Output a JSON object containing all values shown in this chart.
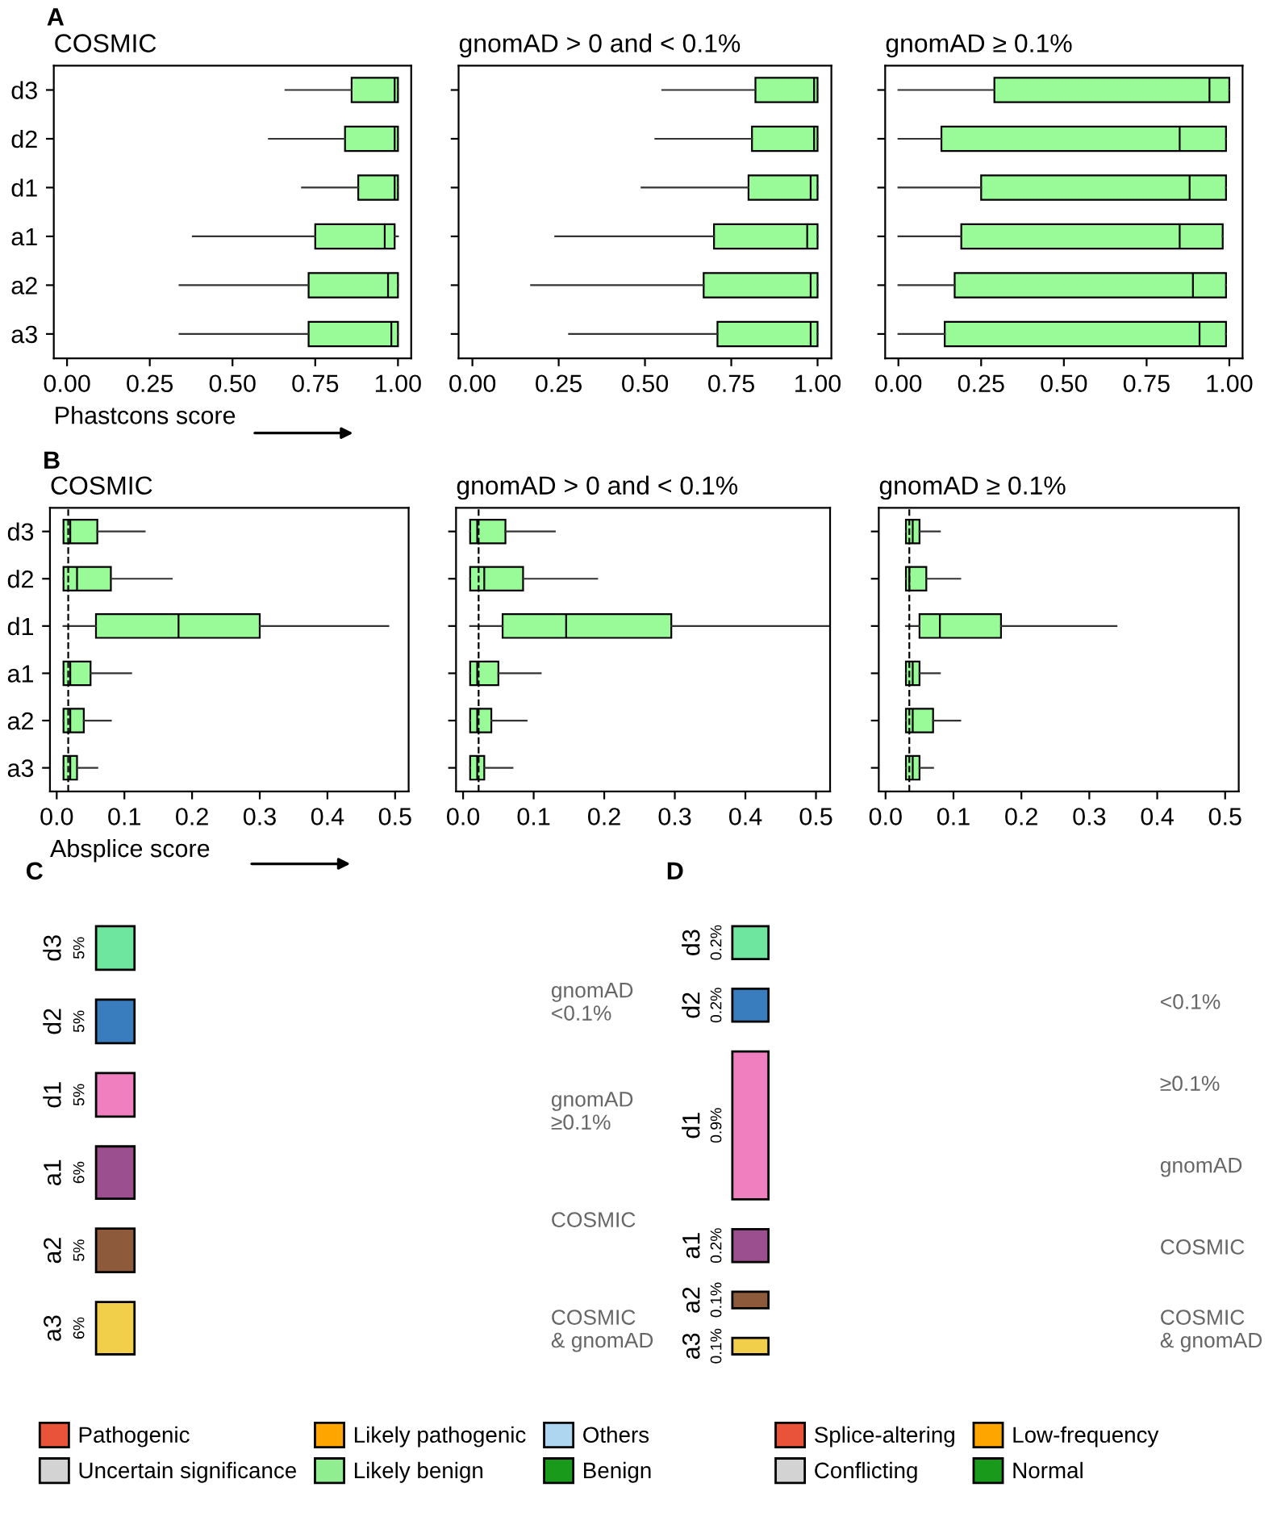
{
  "chart_data": [
    {
      "type": "box",
      "orientation": "horizontal",
      "title": "COSMIC",
      "xlabel": "Phastcons score",
      "annotations": [
        "A"
      ],
      "categories": [
        "d3",
        "d2",
        "d1",
        "a1",
        "a2",
        "a3"
      ],
      "xlim": [
        -0.04,
        1.04
      ],
      "xticks": [
        {
          "value": 0,
          "label": "0.00"
        },
        {
          "value": 0.25,
          "label": "0.25"
        },
        {
          "value": 0.5,
          "label": "0.50"
        },
        {
          "value": 0.75,
          "label": "0.75"
        },
        {
          "value": 1,
          "label": "1.00"
        }
      ],
      "series": [
        {
          "color": "#98fb98",
          "boxes": [
            {
              "low": 0.66,
              "q1": 0.86,
              "median": 0.99,
              "q3": 1.0,
              "high": 1.0
            },
            {
              "low": 0.61,
              "q1": 0.84,
              "median": 0.99,
              "q3": 1.0,
              "high": 1.0
            },
            {
              "low": 0.71,
              "q1": 0.88,
              "median": 0.99,
              "q3": 1.0,
              "high": 1.0
            },
            {
              "low": 0.38,
              "q1": 0.75,
              "median": 0.96,
              "q3": 0.99,
              "high": 1.0
            },
            {
              "low": 0.34,
              "q1": 0.73,
              "median": 0.97,
              "q3": 1.0,
              "high": 1.0
            },
            {
              "low": 0.34,
              "q1": 0.73,
              "median": 0.98,
              "q3": 1.0,
              "high": 1.0
            }
          ]
        }
      ]
    },
    {
      "type": "box",
      "orientation": "horizontal",
      "title": "gnomAD > 0 and < 0.1%",
      "tick_labels": "x",
      "xlim": [
        -0.04,
        1.04
      ],
      "xticks": [
        {
          "value": 0,
          "label": "0.00"
        },
        {
          "value": 0.25,
          "label": "0.25"
        },
        {
          "value": 0.5,
          "label": "0.50"
        },
        {
          "value": 0.75,
          "label": "0.75"
        },
        {
          "value": 1,
          "label": "1.00"
        }
      ],
      "series": [
        {
          "color": "#98fb98",
          "boxes": [
            {
              "low": 0.55,
              "q1": 0.82,
              "median": 0.99,
              "q3": 1.0,
              "high": 1.0
            },
            {
              "low": 0.53,
              "q1": 0.81,
              "median": 0.99,
              "q3": 1.0,
              "high": 1.0
            },
            {
              "low": 0.49,
              "q1": 0.8,
              "median": 0.98,
              "q3": 1.0,
              "high": 1.0
            },
            {
              "low": 0.24,
              "q1": 0.7,
              "median": 0.97,
              "q3": 1.0,
              "high": 1.0
            },
            {
              "low": 0.17,
              "q1": 0.67,
              "median": 0.98,
              "q3": 1.0,
              "high": 1.0
            },
            {
              "low": 0.28,
              "q1": 0.71,
              "median": 0.98,
              "q3": 1.0,
              "high": 1.0
            }
          ]
        }
      ]
    },
    {
      "type": "box",
      "orientation": "horizontal",
      "title": "gnomAD ≥ 0.1%",
      "tick_labels": "x",
      "xlim": [
        -0.04,
        1.04
      ],
      "xticks": [
        {
          "value": 0,
          "label": "0.00"
        },
        {
          "value": 0.25,
          "label": "0.25"
        },
        {
          "value": 0.5,
          "label": "0.50"
        },
        {
          "value": 0.75,
          "label": "0.75"
        },
        {
          "value": 1,
          "label": "1.00"
        }
      ],
      "series": [
        {
          "color": "#98fb98",
          "boxes": [
            {
              "low": 0.0,
              "q1": 0.29,
              "median": 0.94,
              "q3": 1.0,
              "high": 1.0
            },
            {
              "low": 0.0,
              "q1": 0.13,
              "median": 0.85,
              "q3": 0.99,
              "high": 0.99
            },
            {
              "low": 0.0,
              "q1": 0.25,
              "median": 0.88,
              "q3": 0.99,
              "high": 0.99
            },
            {
              "low": 0.0,
              "q1": 0.19,
              "median": 0.85,
              "q3": 0.98,
              "high": 0.98
            },
            {
              "low": 0.0,
              "q1": 0.17,
              "median": 0.89,
              "q3": 0.99,
              "high": 0.99
            },
            {
              "low": 0.0,
              "q1": 0.14,
              "median": 0.91,
              "q3": 0.99,
              "high": 0.99
            }
          ]
        }
      ]
    },
    {
      "type": "box",
      "orientation": "horizontal",
      "title": "COSMIC",
      "xlabel": "Absplice score",
      "annotations": [
        "B"
      ],
      "categories": [
        "d3",
        "d2",
        "d1",
        "a1",
        "a2",
        "a3"
      ],
      "xlim": [
        -0.01,
        0.52
      ],
      "xticks": [
        {
          "value": 0,
          "label": "0.0"
        },
        {
          "value": 0.1,
          "label": "0.1"
        },
        {
          "value": 0.2,
          "label": "0.2"
        },
        {
          "value": 0.3,
          "label": "0.3"
        },
        {
          "value": 0.4,
          "label": "0.4"
        },
        {
          "value": 0.5,
          "label": "0.5"
        }
      ],
      "ref_lines": [
        {
          "axis": "x",
          "value": 0.017,
          "line_style": "dashed"
        }
      ],
      "series": [
        {
          "color": "#98fb98",
          "boxes": [
            {
              "low": 0.01,
              "q1": 0.01,
              "median": 0.02,
              "q3": 0.06,
              "high": 0.13
            },
            {
              "low": 0.01,
              "q1": 0.01,
              "median": 0.03,
              "q3": 0.08,
              "high": 0.17
            },
            {
              "low": 0.01,
              "q1": 0.058,
              "median": 0.18,
              "q3": 0.3,
              "high": 0.49
            },
            {
              "low": 0.01,
              "q1": 0.01,
              "median": 0.02,
              "q3": 0.05,
              "high": 0.11
            },
            {
              "low": 0.01,
              "q1": 0.01,
              "median": 0.02,
              "q3": 0.04,
              "high": 0.08
            },
            {
              "low": 0.01,
              "q1": 0.01,
              "median": 0.02,
              "q3": 0.03,
              "high": 0.06
            }
          ]
        }
      ]
    },
    {
      "type": "box",
      "orientation": "horizontal",
      "title": "gnomAD > 0 and < 0.1%",
      "tick_labels": "x",
      "xlim": [
        -0.01,
        0.52
      ],
      "xticks": [
        {
          "value": 0,
          "label": "0.0"
        },
        {
          "value": 0.1,
          "label": "0.1"
        },
        {
          "value": 0.2,
          "label": "0.2"
        },
        {
          "value": 0.3,
          "label": "0.3"
        },
        {
          "value": 0.4,
          "label": "0.4"
        },
        {
          "value": 0.5,
          "label": "0.5"
        }
      ],
      "ref_lines": [
        {
          "axis": "x",
          "value": 0.022,
          "line_style": "dashed"
        }
      ],
      "series": [
        {
          "color": "#98fb98",
          "boxes": [
            {
              "low": 0.01,
              "q1": 0.01,
              "median": 0.02,
              "q3": 0.06,
              "high": 0.13
            },
            {
              "low": 0.01,
              "q1": 0.01,
              "median": 0.03,
              "q3": 0.085,
              "high": 0.19
            },
            {
              "low": 0.01,
              "q1": 0.056,
              "median": 0.146,
              "q3": 0.295,
              "high": 0.52
            },
            {
              "low": 0.01,
              "q1": 0.01,
              "median": 0.02,
              "q3": 0.05,
              "high": 0.11
            },
            {
              "low": 0.01,
              "q1": 0.01,
              "median": 0.02,
              "q3": 0.04,
              "high": 0.09
            },
            {
              "low": 0.01,
              "q1": 0.01,
              "median": 0.02,
              "q3": 0.03,
              "high": 0.07
            }
          ]
        }
      ]
    },
    {
      "type": "box",
      "orientation": "horizontal",
      "title": "gnomAD ≥ 0.1%",
      "tick_labels": "x",
      "xlim": [
        -0.01,
        0.52
      ],
      "xticks": [
        {
          "value": 0,
          "label": "0.0"
        },
        {
          "value": 0.1,
          "label": "0.1"
        },
        {
          "value": 0.2,
          "label": "0.2"
        },
        {
          "value": 0.3,
          "label": "0.3"
        },
        {
          "value": 0.4,
          "label": "0.4"
        },
        {
          "value": 0.5,
          "label": "0.5"
        }
      ],
      "ref_lines": [
        {
          "axis": "x",
          "value": 0.035,
          "line_style": "dashed"
        }
      ],
      "series": [
        {
          "color": "#98fb98",
          "boxes": [
            {
              "low": 0.03,
              "q1": 0.03,
              "median": 0.04,
              "q3": 0.05,
              "high": 0.08
            },
            {
              "low": 0.03,
              "q1": 0.03,
              "median": 0.035,
              "q3": 0.06,
              "high": 0.11
            },
            {
              "low": 0.03,
              "q1": 0.05,
              "median": 0.08,
              "q3": 0.17,
              "high": 0.34
            },
            {
              "low": 0.03,
              "q1": 0.03,
              "median": 0.04,
              "q3": 0.05,
              "high": 0.08
            },
            {
              "low": 0.03,
              "q1": 0.03,
              "median": 0.04,
              "q3": 0.07,
              "high": 0.11
            },
            {
              "low": 0.03,
              "q1": 0.03,
              "median": 0.04,
              "q3": 0.05,
              "high": 0.07
            }
          ]
        }
      ]
    },
    {
      "type": "other",
      "title": "C",
      "legend": "bottom",
      "categories": [
        "d3",
        "d2",
        "d1",
        "a1",
        "a2",
        "a3"
      ],
      "values": [
        5,
        5,
        5,
        6,
        5,
        6
      ],
      "value_labels": [
        "5%",
        "5%",
        "5%",
        "6%",
        "5%",
        "6%"
      ],
      "colors": [
        "#6ee6a0",
        "#3a7dbf",
        "#f07fbf",
        "#9b4f8f",
        "#8e5a3c",
        "#f2cf4a"
      ],
      "annotations": [
        "gnomAD\n<0.1%",
        "gnomAD\n≥0.1%",
        "COSMIC",
        "COSMIC\n& gnomAD"
      ],
      "series": [
        {
          "name": "Pathogenic",
          "color": "#e8533a",
          "values": [
            null,
            null,
            null,
            null,
            null,
            null
          ]
        },
        {
          "name": "Likely pathogenic",
          "color": "#ffa500",
          "values": [
            null,
            null,
            null,
            null,
            null,
            null
          ]
        },
        {
          "name": "Others",
          "color": "#aed6f1",
          "values": [
            null,
            null,
            null,
            null,
            null,
            null
          ]
        },
        {
          "name": "Uncertain significance",
          "color": "#d3d3d3",
          "values": [
            null,
            null,
            null,
            null,
            null,
            null
          ]
        },
        {
          "name": "Likely benign",
          "color": "#90ee90",
          "values": [
            null,
            null,
            null,
            null,
            null,
            null
          ]
        },
        {
          "name": "Benign",
          "color": "#1a9a1a",
          "values": [
            null,
            null,
            null,
            null,
            null,
            null
          ]
        }
      ]
    },
    {
      "type": "other",
      "title": "D",
      "legend": "bottom",
      "categories": [
        "d3",
        "d2",
        "d1",
        "a1",
        "a2",
        "a3"
      ],
      "values": [
        0.2,
        0.2,
        0.9,
        0.2,
        0.1,
        0.1
      ],
      "value_labels": [
        "0.2%",
        "0.2%",
        "0.9%",
        "0.2%",
        "0.1%",
        "0.1%"
      ],
      "colors": [
        "#6ee6a0",
        "#3a7dbf",
        "#f07fbf",
        "#9b4f8f",
        "#8e5a3c",
        "#f2cf4a"
      ],
      "annotations": [
        "<0.1%",
        "≥0.1%",
        "gnomAD",
        "COSMIC",
        "COSMIC\n& gnomAD"
      ],
      "series": [
        {
          "name": "Splice-altering",
          "color": "#e8533a",
          "values": [
            null,
            null,
            null,
            null,
            null,
            null
          ]
        },
        {
          "name": "Low-frequency",
          "color": "#ffa500",
          "values": [
            null,
            null,
            null,
            null,
            null,
            null
          ]
        },
        {
          "name": "Conflicting",
          "color": "#d3d3d3",
          "values": [
            null,
            null,
            null,
            null,
            null,
            null
          ]
        },
        {
          "name": "Normal",
          "color": "#1a9a1a",
          "values": [
            null,
            null,
            null,
            null,
            null,
            null
          ]
        }
      ]
    }
  ]
}
